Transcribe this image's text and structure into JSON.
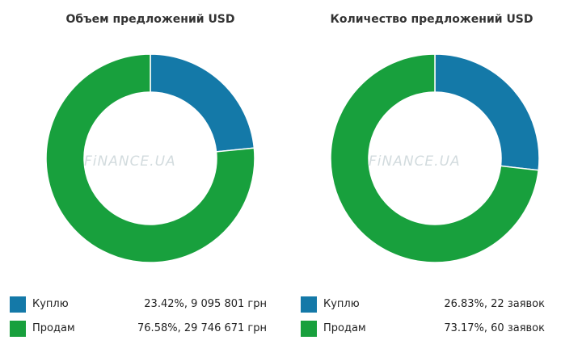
{
  "watermark": "FiNANCE.UA",
  "chart_data": [
    {
      "type": "pie",
      "title": "Объем предложений USD",
      "categories": [
        "Куплю",
        "Продам"
      ],
      "values": [
        23.42,
        76.58
      ],
      "colors": [
        "#1479a8",
        "#18a03d"
      ],
      "legend": [
        {
          "label": "Куплю",
          "value": "23.42%, 9 095 801 грн"
        },
        {
          "label": "Продам",
          "value": "76.58%, 29 746 671 грн"
        }
      ]
    },
    {
      "type": "pie",
      "title": "Количество предложений USD",
      "categories": [
        "Куплю",
        "Продам"
      ],
      "values": [
        26.83,
        73.17
      ],
      "colors": [
        "#1479a8",
        "#18a03d"
      ],
      "legend": [
        {
          "label": "Куплю",
          "value": "26.83%, 22 заявок"
        },
        {
          "label": "Продам",
          "value": "73.17%, 60 заявок"
        }
      ]
    }
  ]
}
